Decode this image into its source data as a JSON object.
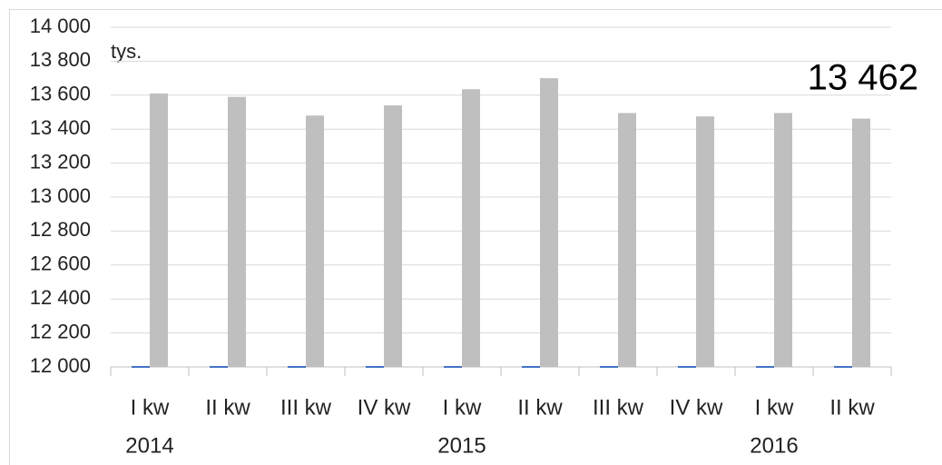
{
  "chart_data": {
    "type": "bar",
    "annotation": "tys.",
    "categories": [
      "I kw",
      "II kw",
      "III kw",
      "IV kw",
      "I kw",
      "II kw",
      "III kw",
      "IV kw",
      "I kw",
      "II kw"
    ],
    "year_labels": [
      "2014",
      null,
      null,
      null,
      "2015",
      null,
      null,
      null,
      "2016",
      null
    ],
    "series": [
      {
        "color": "#4472c4",
        "values": [
          12000,
          12000,
          12000,
          12000,
          12000,
          12000,
          12000,
          12000,
          12000,
          12000
        ]
      },
      {
        "color": "#bfbfbf",
        "values": [
          13610,
          13590,
          13480,
          13540,
          13635,
          13700,
          13495,
          13475,
          13495,
          13462
        ],
        "value_labels": [
          null,
          null,
          null,
          null,
          null,
          null,
          null,
          null,
          null,
          "13 462"
        ]
      }
    ],
    "ylim": [
      12000,
      14000
    ],
    "yticks": [
      {
        "value": 12000,
        "label": "12 000"
      },
      {
        "value": 12200,
        "label": "12 200"
      },
      {
        "value": 12400,
        "label": "12 400"
      },
      {
        "value": 12600,
        "label": "12 600"
      },
      {
        "value": 12800,
        "label": "12 800"
      },
      {
        "value": 13000,
        "label": "13 000"
      },
      {
        "value": 13200,
        "label": "13 200"
      },
      {
        "value": 13400,
        "label": "13 400"
      },
      {
        "value": 13600,
        "label": "13 600"
      },
      {
        "value": 13800,
        "label": "13 800"
      },
      {
        "value": 14000,
        "label": "14 000"
      }
    ],
    "grid": true
  }
}
